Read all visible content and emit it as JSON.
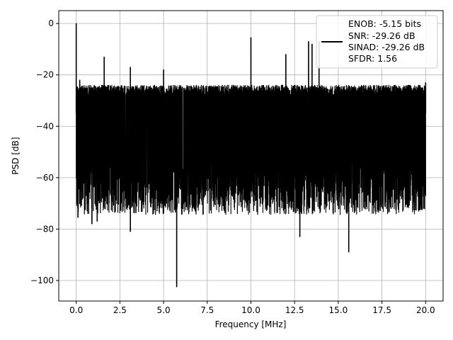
{
  "chart_data": {
    "type": "line",
    "title": "",
    "xlabel": "Frequency [MHz]",
    "ylabel": "PSD [dB]",
    "xlim": [
      -1.0,
      21.0
    ],
    "ylim": [
      -108.0,
      5.0
    ],
    "xticks": [
      0.0,
      2.5,
      5.0,
      7.5,
      10.0,
      12.5,
      15.0,
      17.5,
      20.0
    ],
    "xtick_labels": [
      "0.0",
      "2.5",
      "5.0",
      "7.5",
      "10.0",
      "12.5",
      "15.0",
      "17.5",
      "20.0"
    ],
    "yticks": [
      0,
      -20,
      -40,
      -60,
      -80,
      -100
    ],
    "ytick_labels": [
      "0",
      "−20",
      "−40",
      "−60",
      "−80",
      "−100"
    ],
    "grid": true,
    "legend_position": "top-right",
    "legend_lines": [
      "ENOB: -5.15 bits",
      "SNR: -29.26 dB",
      "SINAD: -29.26 dB",
      "SFDR: 1.56"
    ],
    "series_color": "#000000",
    "series": [
      {
        "name": "ENOB: -5.15 bits",
        "noise_floor_db": [
          -25,
          -62
        ],
        "noise_band_db": [
          -24,
          -54
        ],
        "points": [
          {
            "x": 0.0,
            "y": 0.0
          },
          {
            "x": 0.02,
            "y": -53
          },
          {
            "x": 0.1,
            "y": -75.5
          },
          {
            "x": 0.2,
            "y": -22
          },
          {
            "x": 0.9,
            "y": -78
          },
          {
            "x": 1.2,
            "y": -77
          },
          {
            "x": 1.6,
            "y": -13
          },
          {
            "x": 3.1,
            "y": -81
          },
          {
            "x": 3.1,
            "y": -17
          },
          {
            "x": 5.0,
            "y": -18
          },
          {
            "x": 5.75,
            "y": -102.5
          },
          {
            "x": 10.0,
            "y": -5.5
          },
          {
            "x": 12.0,
            "y": -12
          },
          {
            "x": 12.8,
            "y": -83
          },
          {
            "x": 13.3,
            "y": -7
          },
          {
            "x": 13.5,
            "y": -8
          },
          {
            "x": 13.9,
            "y": -7
          },
          {
            "x": 15.6,
            "y": -89
          },
          {
            "x": 19.9,
            "y": -72
          },
          {
            "x": 20.0,
            "y": -23
          }
        ]
      }
    ]
  }
}
